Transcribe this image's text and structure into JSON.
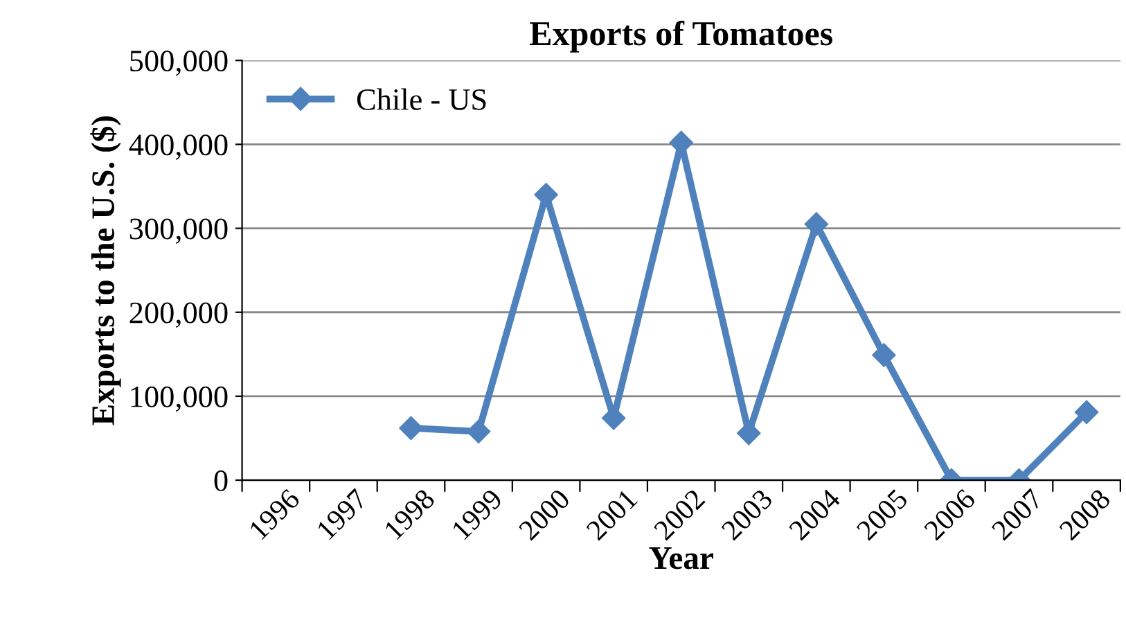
{
  "chart_data": {
    "type": "line",
    "title": "Exports of Tomatoes",
    "xlabel": "Year",
    "ylabel": "Exports to the U.S. ($)",
    "categories": [
      "1996",
      "1997",
      "1998",
      "1999",
      "2000",
      "2001",
      "2002",
      "2003",
      "2004",
      "2005",
      "2006",
      "2007",
      "2008"
    ],
    "series": [
      {
        "name": "Chile - US",
        "color": "#4f81bd",
        "values": [
          null,
          null,
          62000,
          58000,
          340000,
          74000,
          402000,
          56000,
          305000,
          149000,
          0,
          0,
          81000
        ]
      }
    ],
    "ylim": [
      0,
      500000
    ],
    "yticks": [
      {
        "value": 0,
        "label": "0"
      },
      {
        "value": 100000,
        "label": "100,000"
      },
      {
        "value": 200000,
        "label": "200,000"
      },
      {
        "value": 300000,
        "label": "300,000"
      },
      {
        "value": 400000,
        "label": "400,000"
      },
      {
        "value": 500000,
        "label": "500,000"
      }
    ],
    "grid": "y",
    "legend": "top left",
    "marker": "diamond",
    "line_style": "solid"
  }
}
